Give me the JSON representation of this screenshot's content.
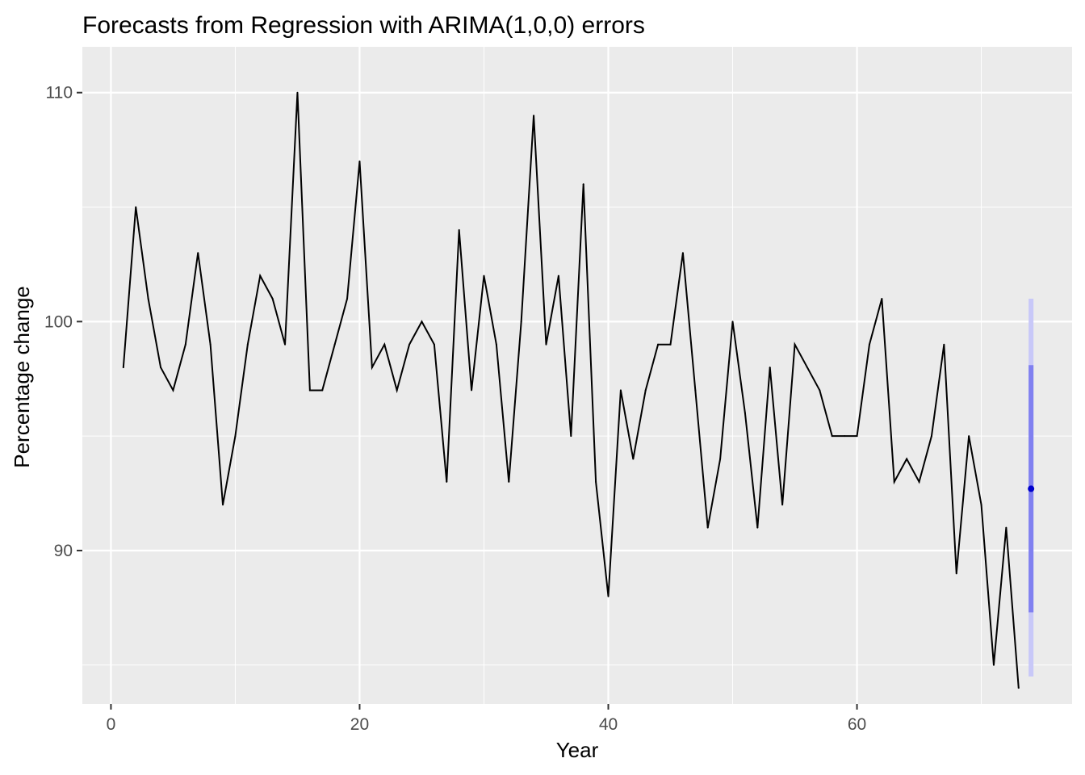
{
  "chart_data": {
    "type": "line",
    "title": "Forecasts from Regression with ARIMA(1,0,0) errors",
    "xlabel": "Year",
    "ylabel": "Percentage change",
    "xlim": [
      -2.3,
      77.3
    ],
    "ylim": [
      83.3,
      112.0
    ],
    "x_ticks": [
      0,
      20,
      40,
      60
    ],
    "x_tick_labels": [
      "0",
      "20",
      "40",
      "60"
    ],
    "y_ticks": [
      90,
      100,
      110
    ],
    "y_tick_labels": [
      "90",
      "100",
      "110"
    ],
    "grid": true,
    "legend": "none",
    "colors": {
      "panel": "#ebebeb",
      "grid": "#ffffff",
      "series": "#000000",
      "point_forecast": "#0000cc",
      "interval_80": "#8080f0",
      "interval_95": "#c8c8f8"
    },
    "series": [
      {
        "x": [
          1,
          2,
          3,
          4,
          5,
          6,
          7,
          8,
          9,
          10,
          11,
          12,
          13,
          14,
          15,
          16,
          17,
          18,
          19,
          20,
          21,
          22,
          23,
          24,
          25,
          26,
          27,
          28,
          29,
          30,
          31,
          32,
          33,
          34,
          35,
          36,
          37,
          38,
          39,
          40,
          41,
          42,
          43,
          44,
          45,
          46,
          47,
          48,
          49,
          50,
          51,
          52,
          53,
          54,
          55,
          56,
          57,
          58,
          59,
          60,
          61,
          62,
          63,
          64,
          65,
          66,
          67,
          68,
          69,
          70,
          71,
          72,
          73
        ],
        "values": [
          98,
          105,
          101,
          98,
          97,
          99,
          103,
          99,
          92,
          95,
          99,
          102,
          101,
          99,
          110,
          97,
          97,
          99,
          101,
          107,
          98,
          99,
          97,
          99,
          100,
          99,
          93,
          104,
          97,
          102,
          99,
          93,
          100,
          109,
          99,
          102,
          95,
          106,
          93,
          88,
          97,
          94,
          97,
          99,
          99,
          103,
          97,
          91,
          94,
          100,
          96,
          91,
          98,
          92,
          99,
          98,
          97,
          95,
          95,
          95,
          99,
          101,
          93,
          94,
          93,
          95,
          99,
          89,
          95,
          92,
          85,
          91,
          84
        ]
      }
    ],
    "forecast": {
      "x": 74,
      "point": 92.7,
      "lo80": 87.3,
      "hi80": 98.1,
      "lo95": 84.5,
      "hi95": 101.0
    }
  }
}
